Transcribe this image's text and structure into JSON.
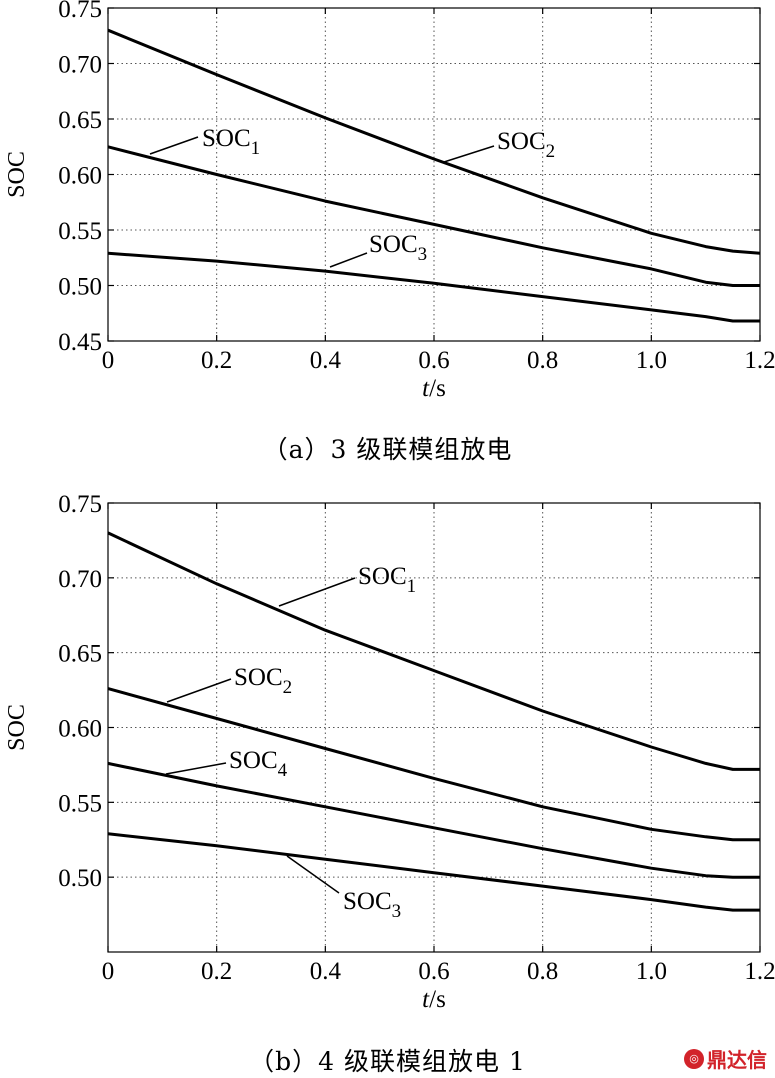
{
  "chart_data": [
    {
      "type": "line",
      "caption": "（a）3 级联模组放电",
      "xlabel_italic": "t",
      "xlabel_rest": "/s",
      "ylabel": "SOC",
      "xlim": [
        0,
        1.2
      ],
      "ylim": [
        0.45,
        0.75
      ],
      "xticks": [
        "0",
        "0.2",
        "0.4",
        "0.6",
        "0.8",
        "1.0",
        "1.2"
      ],
      "yticks": [
        "0.45",
        "0.50",
        "0.55",
        "0.60",
        "0.65",
        "0.70",
        "0.75"
      ],
      "grid": true,
      "series": [
        {
          "name": "SOC",
          "sub": "1",
          "x": [
            0,
            0.2,
            0.4,
            0.6,
            0.8,
            1.0,
            1.1,
            1.15,
            1.2
          ],
          "y": [
            0.73,
            0.69,
            0.651,
            0.614,
            0.579,
            0.547,
            0.535,
            0.531,
            0.529
          ]
        },
        {
          "name": "SOC",
          "sub": "2",
          "x": [
            0,
            0.2,
            0.4,
            0.6,
            0.8,
            1.0,
            1.1,
            1.15,
            1.2
          ],
          "y": [
            0.625,
            0.6,
            0.576,
            0.555,
            0.534,
            0.515,
            0.503,
            0.5,
            0.5
          ]
        },
        {
          "name": "SOC",
          "sub": "3",
          "x": [
            0,
            0.2,
            0.4,
            0.6,
            0.8,
            1.0,
            1.1,
            1.15,
            1.2
          ],
          "y": [
            0.529,
            0.522,
            0.513,
            0.502,
            0.49,
            0.478,
            0.472,
            0.468,
            0.468
          ]
        }
      ]
    },
    {
      "type": "line",
      "caption": "（b）4 级联模组放电 1",
      "xlabel_italic": "t",
      "xlabel_rest": "/s",
      "ylabel": "SOC",
      "xlim": [
        0,
        1.2
      ],
      "ylim": [
        0.45,
        0.75
      ],
      "xticks": [
        "0",
        "0.2",
        "0.4",
        "0.6",
        "0.8",
        "1.0",
        "1.2"
      ],
      "yticks": [
        "0.50",
        "0.55",
        "0.60",
        "0.65",
        "0.70",
        "0.75"
      ],
      "grid": true,
      "series": [
        {
          "name": "SOC",
          "sub": "1",
          "x": [
            0,
            0.2,
            0.4,
            0.6,
            0.8,
            1.0,
            1.1,
            1.15,
            1.2
          ],
          "y": [
            0.73,
            0.696,
            0.665,
            0.638,
            0.611,
            0.587,
            0.576,
            0.572,
            0.572
          ]
        },
        {
          "name": "SOC",
          "sub": "2",
          "x": [
            0,
            0.2,
            0.4,
            0.6,
            0.8,
            1.0,
            1.1,
            1.15,
            1.2
          ],
          "y": [
            0.626,
            0.606,
            0.586,
            0.566,
            0.547,
            0.532,
            0.527,
            0.525,
            0.525
          ]
        },
        {
          "name": "SOC",
          "sub": "3",
          "x": [
            0,
            0.2,
            0.4,
            0.6,
            0.8,
            1.0,
            1.1,
            1.15,
            1.2
          ],
          "y": [
            0.529,
            0.521,
            0.512,
            0.503,
            0.494,
            0.485,
            0.48,
            0.478,
            0.478
          ]
        },
        {
          "name": "SOC",
          "sub": "4",
          "x": [
            0,
            0.2,
            0.4,
            0.6,
            0.8,
            1.0,
            1.1,
            1.15,
            1.2
          ],
          "y": [
            0.576,
            0.561,
            0.547,
            0.533,
            0.519,
            0.506,
            0.501,
            0.5,
            0.5
          ]
        }
      ]
    }
  ],
  "watermark": "鼎达信"
}
